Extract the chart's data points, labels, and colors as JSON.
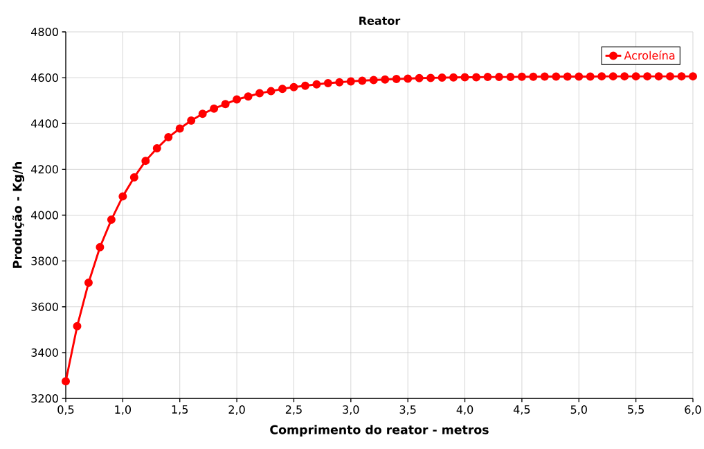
{
  "chart_data": {
    "type": "line",
    "title": "Reator",
    "xlabel": "Comprimento do reator - metros",
    "ylabel": "Produção - Kg/h",
    "x": [
      0.5,
      0.6,
      0.7,
      0.8,
      0.9,
      1.0,
      1.1,
      1.2,
      1.3,
      1.4,
      1.5,
      1.6,
      1.7,
      1.8,
      1.9,
      2.0,
      2.1,
      2.2,
      2.3,
      2.4,
      2.5,
      2.6,
      2.7,
      2.8,
      2.9,
      3.0,
      3.1,
      3.2,
      3.3,
      3.4,
      3.5,
      3.6,
      3.7,
      3.8,
      3.9,
      4.0,
      4.1,
      4.2,
      4.3,
      4.4,
      4.5,
      4.6,
      4.7,
      4.8,
      4.9,
      5.0,
      5.1,
      5.2,
      5.3,
      5.4,
      5.5,
      5.6,
      5.7,
      5.8,
      5.9,
      6.0
    ],
    "series": [
      {
        "name": "Acroleína",
        "color": "#ff0000",
        "values": [
          3275,
          3515,
          3705,
          3860,
          3980,
          4082,
          4165,
          4237,
          4292,
          4340,
          4378,
          4413,
          4442,
          4465,
          4485,
          4505,
          4518,
          4532,
          4541,
          4551,
          4559,
          4565,
          4571,
          4576,
          4580,
          4584,
          4587,
          4590,
          4592,
          4594,
          4596,
          4598,
          4599,
          4600,
          4601,
          4602,
          4602,
          4603,
          4603,
          4603,
          4604,
          4604,
          4605,
          4605,
          4605,
          4605,
          4605,
          4606,
          4606,
          4606,
          4606,
          4606,
          4606,
          4606,
          4606,
          4606
        ]
      }
    ],
    "xlim": [
      0.5,
      6.0
    ],
    "xticks": [
      {
        "value": 0.5,
        "label": "0,5"
      },
      {
        "value": 1.0,
        "label": "1,0"
      },
      {
        "value": 1.5,
        "label": "1,5"
      },
      {
        "value": 2.0,
        "label": "2,0"
      },
      {
        "value": 2.5,
        "label": "2,5"
      },
      {
        "value": 3.0,
        "label": "3,0"
      },
      {
        "value": 3.5,
        "label": "3,5"
      },
      {
        "value": 4.0,
        "label": "4,0"
      },
      {
        "value": 4.5,
        "label": "4,5"
      },
      {
        "value": 5.0,
        "label": "5,0"
      },
      {
        "value": 5.5,
        "label": "5,5"
      },
      {
        "value": 6.0,
        "label": "6,0"
      }
    ],
    "ylim": [
      3200,
      4800
    ],
    "yticks": [
      3200,
      3400,
      3600,
      3800,
      4000,
      4200,
      4400,
      4600,
      4800
    ],
    "grid": true,
    "legend": "top right",
    "marker": "circle",
    "line_style": "solid"
  }
}
